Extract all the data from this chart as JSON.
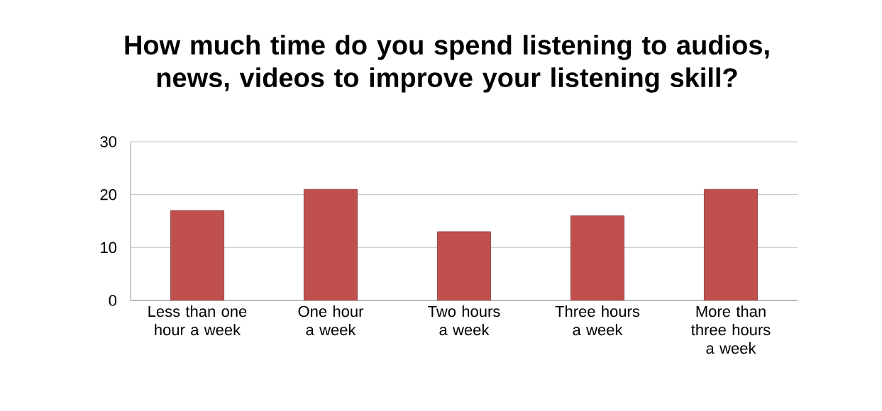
{
  "chart_data": {
    "type": "bar",
    "title": "How much time do you spend listening to audios, news, videos to improve your listening skill?",
    "categories": [
      "Less than one hour a week",
      "One hour a week",
      "Two hours a week",
      "Three hours a week",
      "More than three hours a week"
    ],
    "values": [
      17,
      21,
      13,
      16,
      21
    ],
    "color": "#c0504d",
    "ylim": [
      0,
      30
    ],
    "yticks": [
      0,
      10,
      20,
      30
    ],
    "grid": "y"
  }
}
